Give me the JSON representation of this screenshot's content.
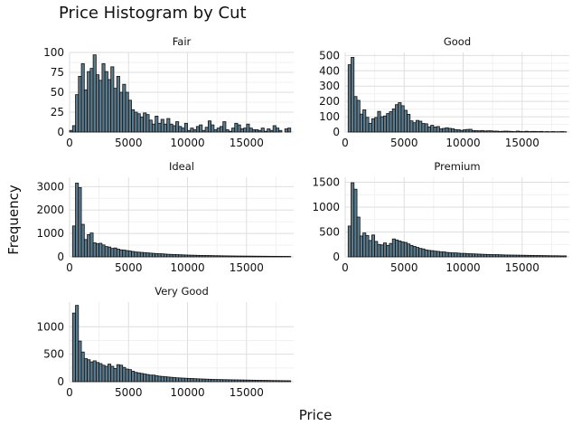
{
  "chart_data": {
    "type": "bar",
    "title": "Price Histogram by Cut",
    "xlabel": "Price",
    "ylabel": "Frequency",
    "bar_fill": "#5b7a8c",
    "bar_stroke": "#111111",
    "grid": true,
    "grid_major_color": "#dedede",
    "grid_minor_color": "#f1f1f1",
    "xlim": [
      0,
      19000
    ],
    "x_ticks": [
      0,
      5000,
      10000,
      15000
    ],
    "panels": [
      {
        "name": "Fair",
        "ylim": [
          0,
          100
        ],
        "y_ticks": [
          0,
          25,
          50,
          75,
          100
        ],
        "bins": {
          "x": [
            0,
            250,
            500,
            750,
            1000,
            1250,
            1500,
            1750,
            2000,
            2250,
            2500,
            2750,
            3000,
            3250,
            3500,
            3750,
            4000,
            4250,
            4500,
            4750,
            5000,
            5250,
            5500,
            5750,
            6000,
            6250,
            6500,
            6750,
            7000,
            7250,
            7500,
            7750,
            8000,
            8250,
            8500,
            8750,
            9000,
            9250,
            9500,
            9750,
            10000,
            10250,
            10500,
            10750,
            11000,
            11250,
            11500,
            11750,
            12000,
            12250,
            12500,
            12750,
            13000,
            13250,
            13500,
            13750,
            14000,
            14250,
            14500,
            14750,
            15000,
            15250,
            15500,
            15750,
            16000,
            16250,
            16500,
            16750,
            17000,
            17250,
            17500,
            17750,
            18000,
            18250,
            18500
          ],
          "y": [
            2,
            8,
            47,
            70,
            86,
            53,
            76,
            80,
            97,
            72,
            65,
            86,
            76,
            66,
            82,
            55,
            70,
            50,
            60,
            50,
            40,
            28,
            25,
            23,
            19,
            24,
            22,
            15,
            10,
            20,
            11,
            16,
            10,
            17,
            10,
            8,
            13,
            7,
            5,
            11,
            2,
            5,
            3,
            7,
            9,
            2,
            6,
            14,
            9,
            3,
            5,
            7,
            13,
            3,
            1,
            5,
            11,
            9,
            4,
            5,
            10,
            5,
            3,
            3,
            2,
            5,
            1,
            4,
            2,
            8,
            5,
            2,
            0,
            4,
            5
          ]
        }
      },
      {
        "name": "Good",
        "ylim": [
          0,
          520
        ],
        "y_ticks": [
          0,
          100,
          200,
          300,
          400,
          500
        ],
        "bins": {
          "x": [
            250,
            500,
            750,
            1000,
            1250,
            1500,
            1750,
            2000,
            2250,
            2500,
            2750,
            3000,
            3250,
            3500,
            3750,
            4000,
            4250,
            4500,
            4750,
            5000,
            5250,
            5500,
            5750,
            6000,
            6250,
            6500,
            6750,
            7000,
            7250,
            7500,
            7750,
            8000,
            8250,
            8500,
            8750,
            9000,
            9250,
            9500,
            9750,
            10000,
            10250,
            10500,
            10750,
            11000,
            11250,
            11500,
            11750,
            12000,
            12250,
            12500,
            12750,
            13000,
            13250,
            13500,
            13750,
            14000,
            14250,
            14500,
            14750,
            15000,
            15250,
            15500,
            15750,
            16000,
            16250,
            16500,
            16750,
            17000,
            17250,
            17500,
            17750,
            18000,
            18250,
            18500
          ],
          "y": [
            440,
            488,
            232,
            207,
            117,
            145,
            96,
            57,
            87,
            95,
            135,
            100,
            105,
            121,
            133,
            151,
            179,
            192,
            172,
            142,
            116,
            73,
            61,
            76,
            71,
            56,
            54,
            34,
            44,
            33,
            36,
            21,
            24,
            28,
            24,
            22,
            16,
            15,
            11,
            15,
            17,
            18,
            10,
            9,
            8,
            10,
            7,
            8,
            8,
            6,
            6,
            4,
            5,
            6,
            5,
            4,
            3,
            6,
            4,
            3,
            5,
            3,
            4,
            4,
            3,
            4,
            2,
            3,
            2,
            3,
            2,
            2,
            3,
            2
          ]
        }
      },
      {
        "name": "Ideal",
        "ylim": [
          0,
          3400
        ],
        "y_ticks": [
          0,
          1000,
          2000,
          3000
        ],
        "bins": {
          "x": [
            250,
            500,
            750,
            1000,
            1250,
            1500,
            1750,
            2000,
            2250,
            2500,
            2750,
            3000,
            3250,
            3500,
            3750,
            4000,
            4250,
            4500,
            4750,
            5000,
            5250,
            5500,
            5750,
            6000,
            6250,
            6500,
            6750,
            7000,
            7250,
            7500,
            7750,
            8000,
            8250,
            8500,
            8750,
            9000,
            9250,
            9500,
            9750,
            10000,
            10250,
            10500,
            10750,
            11000,
            11250,
            11500,
            11750,
            12000,
            12250,
            12500,
            12750,
            13000,
            13250,
            13500,
            13750,
            14000,
            14250,
            14500,
            14750,
            15000,
            15250,
            15500,
            15750,
            16000,
            16250,
            16500,
            16750,
            17000,
            17250,
            17500,
            17750,
            18000,
            18250,
            18500
          ],
          "y": [
            1320,
            3150,
            2960,
            1390,
            740,
            950,
            1020,
            600,
            560,
            580,
            510,
            440,
            420,
            360,
            380,
            330,
            300,
            290,
            270,
            250,
            230,
            210,
            200,
            190,
            180,
            170,
            160,
            150,
            140,
            135,
            130,
            120,
            110,
            105,
            100,
            95,
            90,
            85,
            80,
            75,
            72,
            68,
            65,
            62,
            60,
            58,
            55,
            52,
            50,
            48,
            46,
            44,
            42,
            40,
            38,
            36,
            35,
            34,
            33,
            32,
            31,
            30,
            29,
            28,
            27,
            26,
            25,
            24,
            24,
            23,
            22,
            21,
            20,
            19
          ]
        }
      },
      {
        "name": "Premium",
        "ylim": [
          0,
          1600
        ],
        "y_ticks": [
          0,
          500,
          1000,
          1500
        ],
        "bins": {
          "x": [
            250,
            500,
            750,
            1000,
            1250,
            1500,
            1750,
            2000,
            2250,
            2500,
            2750,
            3000,
            3250,
            3500,
            3750,
            4000,
            4250,
            4500,
            4750,
            5000,
            5250,
            5500,
            5750,
            6000,
            6250,
            6500,
            6750,
            7000,
            7250,
            7500,
            7750,
            8000,
            8250,
            8500,
            8750,
            9000,
            9250,
            9500,
            9750,
            10000,
            10250,
            10500,
            10750,
            11000,
            11250,
            11500,
            11750,
            12000,
            12250,
            12500,
            12750,
            13000,
            13250,
            13500,
            13750,
            14000,
            14250,
            14500,
            14750,
            15000,
            15250,
            15500,
            15750,
            16000,
            16250,
            16500,
            16750,
            17000,
            17250,
            17500,
            17750,
            18000,
            18250,
            18500
          ],
          "y": [
            620,
            1490,
            1360,
            800,
            420,
            480,
            430,
            330,
            440,
            310,
            250,
            240,
            280,
            230,
            270,
            360,
            340,
            320,
            300,
            290,
            260,
            230,
            210,
            190,
            170,
            160,
            140,
            130,
            125,
            115,
            110,
            100,
            100,
            90,
            85,
            80,
            80,
            75,
            70,
            70,
            65,
            62,
            60,
            58,
            55,
            52,
            50,
            48,
            46,
            45,
            44,
            42,
            40,
            38,
            37,
            36,
            35,
            34,
            33,
            32,
            31,
            30,
            29,
            28,
            27,
            26,
            25,
            24,
            23,
            22,
            22,
            21,
            20,
            20
          ]
        }
      },
      {
        "name": "Very Good",
        "ylim": [
          0,
          1450
        ],
        "y_ticks": [
          0,
          500,
          1000
        ],
        "bins": {
          "x": [
            250,
            500,
            750,
            1000,
            1250,
            1500,
            1750,
            2000,
            2250,
            2500,
            2750,
            3000,
            3250,
            3500,
            3750,
            4000,
            4250,
            4500,
            4750,
            5000,
            5250,
            5500,
            5750,
            6000,
            6250,
            6500,
            6750,
            7000,
            7250,
            7500,
            7750,
            8000,
            8250,
            8500,
            8750,
            9000,
            9250,
            9500,
            9750,
            10000,
            10250,
            10500,
            10750,
            11000,
            11250,
            11500,
            11750,
            12000,
            12250,
            12500,
            12750,
            13000,
            13250,
            13500,
            13750,
            14000,
            14250,
            14500,
            14750,
            15000,
            15250,
            15500,
            15750,
            16000,
            16250,
            16500,
            16750,
            17000,
            17250,
            17500,
            17750,
            18000,
            18250,
            18500
          ],
          "y": [
            1250,
            1390,
            740,
            540,
            420,
            400,
            360,
            380,
            350,
            330,
            300,
            280,
            320,
            280,
            240,
            310,
            300,
            260,
            230,
            220,
            190,
            170,
            160,
            150,
            140,
            130,
            120,
            120,
            110,
            100,
            95,
            90,
            85,
            80,
            75,
            70,
            68,
            65,
            62,
            60,
            58,
            55,
            52,
            50,
            48,
            46,
            44,
            42,
            40,
            39,
            38,
            37,
            36,
            35,
            34,
            33,
            32,
            31,
            30,
            29,
            28,
            27,
            26,
            25,
            24,
            23,
            22,
            21,
            20,
            20,
            19,
            18,
            18,
            17
          ]
        }
      }
    ]
  }
}
